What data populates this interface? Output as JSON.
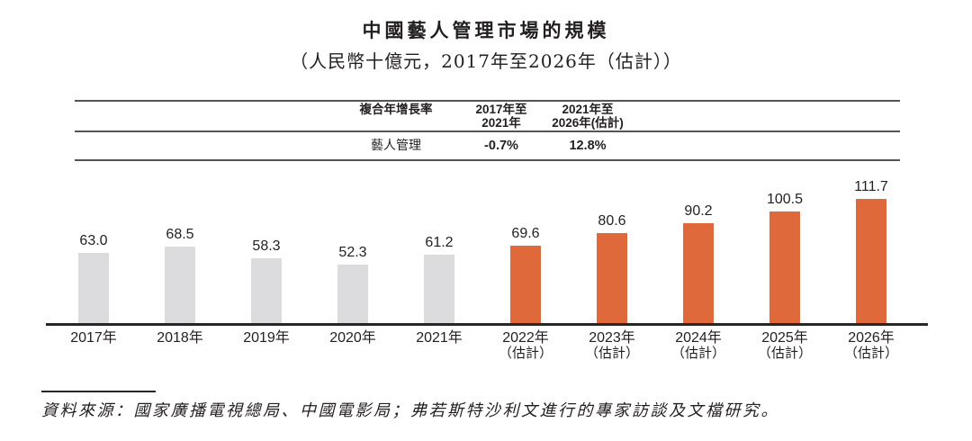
{
  "title": "中國藝人管理市場的規模",
  "subtitle": "（人民幣十億元，2017年至2026年（估計））",
  "cagr_table": {
    "metric_header": "複合年增長率",
    "periods": [
      {
        "line1": "2017年至",
        "line2": "2021年"
      },
      {
        "line1": "2021年至",
        "line2": "2026年(估計)"
      }
    ],
    "rows": [
      {
        "label": "藝人管理",
        "values": [
          "-0.7%",
          "12.8%"
        ]
      }
    ]
  },
  "chart_data": {
    "type": "bar",
    "title": "中國藝人管理市場的規模",
    "subtitle": "（人民幣十億元，2017年至2026年（估計））",
    "unit": "人民幣十億元",
    "categories": [
      "2017年",
      "2018年",
      "2019年",
      "2020年",
      "2021年",
      "2022年（估計）",
      "2023年（估計）",
      "2024年（估計）",
      "2025年（估計）",
      "2026年（估計）"
    ],
    "x_tick_line1": [
      "2017年",
      "2018年",
      "2019年",
      "2020年",
      "2021年",
      "2022年",
      "2023年",
      "2024年",
      "2025年",
      "2026年"
    ],
    "x_tick_line2": [
      "",
      "",
      "",
      "",
      "",
      "（估計）",
      "（估計）",
      "（估計）",
      "（估計）",
      "（估計）"
    ],
    "values": [
      63.0,
      68.5,
      58.3,
      52.3,
      61.2,
      69.6,
      80.6,
      90.2,
      100.5,
      111.7
    ],
    "bar_labels": [
      "63.0",
      "68.5",
      "58.3",
      "52.3",
      "61.2",
      "69.6",
      "80.6",
      "90.2",
      "100.5",
      "111.7"
    ],
    "historical_count": 5,
    "colors": {
      "historical": "#dcdcde",
      "estimated": "#e0693c",
      "axis": "#2a2627",
      "text": "#231f20"
    },
    "ylim": [
      0,
      120
    ],
    "grid": false,
    "legend": "none",
    "value_labels_shown": true
  },
  "source": "資料來源：國家廣播電視總局、中國電影局；弗若斯特沙利文進行的專家訪談及文檔研究。"
}
